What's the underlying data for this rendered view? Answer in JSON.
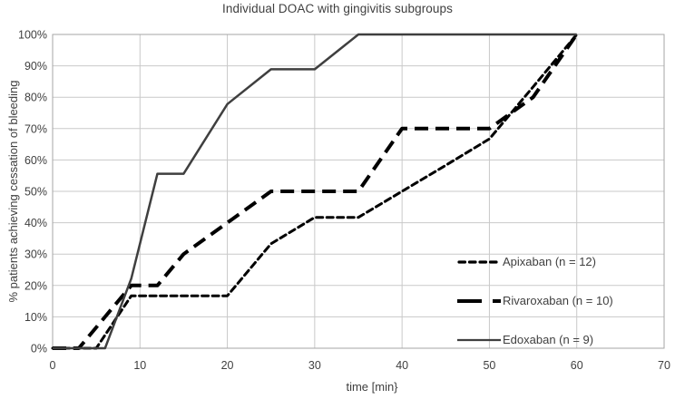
{
  "chart_data": {
    "type": "line",
    "title": "Individual DOAC with gingivitis subgroups",
    "xlabel": "time [min}",
    "ylabel": "% patients achieving cessation of bleeding",
    "xlim": [
      0,
      70
    ],
    "ylim": [
      0,
      100
    ],
    "grid": true,
    "legend_position": "inside-right-lower",
    "x_ticks": [
      {
        "value": 0,
        "label": "0"
      },
      {
        "value": 10,
        "label": "10"
      },
      {
        "value": 20,
        "label": "20"
      },
      {
        "value": 30,
        "label": "30"
      },
      {
        "value": 40,
        "label": "40"
      },
      {
        "value": 50,
        "label": "50"
      },
      {
        "value": 60,
        "label": "60"
      },
      {
        "value": 70,
        "label": "70"
      }
    ],
    "y_ticks": [
      {
        "value": 0,
        "label": "0%"
      },
      {
        "value": 10,
        "label": "10%"
      },
      {
        "value": 20,
        "label": "20%"
      },
      {
        "value": 30,
        "label": "30%"
      },
      {
        "value": 40,
        "label": "40%"
      },
      {
        "value": 50,
        "label": "50%"
      },
      {
        "value": 60,
        "label": "60%"
      },
      {
        "value": 70,
        "label": "70%"
      },
      {
        "value": 80,
        "label": "80%"
      },
      {
        "value": 90,
        "label": "90%"
      },
      {
        "value": 100,
        "label": "100%"
      }
    ],
    "series": [
      {
        "name": "Apixaban",
        "n": 12,
        "legend": "Apixaban (n = 12)",
        "line_style": "short-dash",
        "points": [
          [
            0,
            0
          ],
          [
            3,
            0
          ],
          [
            5,
            0
          ],
          [
            9,
            16.7
          ],
          [
            12,
            16.7
          ],
          [
            15,
            16.7
          ],
          [
            20,
            16.7
          ],
          [
            25,
            33.3
          ],
          [
            30,
            41.7
          ],
          [
            35,
            41.7
          ],
          [
            40,
            50
          ],
          [
            45,
            58.3
          ],
          [
            50,
            66.7
          ],
          [
            55,
            83.3
          ],
          [
            60,
            100
          ]
        ]
      },
      {
        "name": "Rivaroxaban",
        "n": 10,
        "legend": "Rivaroxaban (n = 10)",
        "line_style": "long-dash",
        "points": [
          [
            0,
            0
          ],
          [
            3,
            0
          ],
          [
            6,
            10
          ],
          [
            9,
            20
          ],
          [
            12,
            20
          ],
          [
            15,
            30
          ],
          [
            20,
            40
          ],
          [
            25,
            50
          ],
          [
            30,
            50
          ],
          [
            35,
            50
          ],
          [
            40,
            70
          ],
          [
            45,
            70
          ],
          [
            50,
            70
          ],
          [
            55,
            80
          ],
          [
            60,
            100
          ]
        ]
      },
      {
        "name": "Edoxaban",
        "n": 9,
        "legend": "Edoxaban (n = 9)",
        "line_style": "solid",
        "points": [
          [
            0,
            0
          ],
          [
            3,
            0
          ],
          [
            6,
            0
          ],
          [
            9,
            22.2
          ],
          [
            12,
            55.6
          ],
          [
            15,
            55.6
          ],
          [
            20,
            77.8
          ],
          [
            25,
            88.9
          ],
          [
            30,
            88.9
          ],
          [
            35,
            100
          ],
          [
            40,
            100
          ],
          [
            45,
            100
          ],
          [
            50,
            100
          ],
          [
            55,
            100
          ],
          [
            60,
            100
          ]
        ]
      }
    ],
    "colors": {
      "grid": "#c9c9c9",
      "plot_border": "#a6a6a6",
      "dashed_series": "#000000",
      "solid_series": "#3f3f3f",
      "text": "#3f3f3f"
    }
  }
}
